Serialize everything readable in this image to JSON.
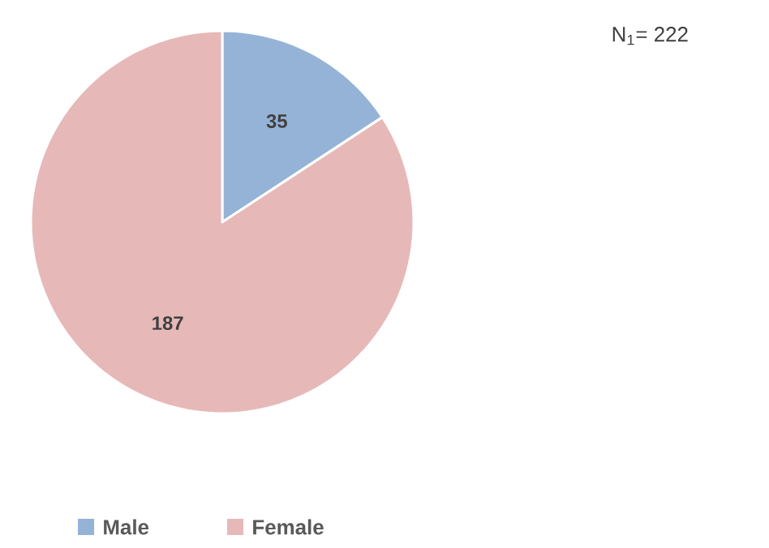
{
  "chart_data": {
    "type": "pie",
    "title": "N$_{1}$= 222",
    "categories": [
      "Male",
      "Female"
    ],
    "values": [
      35,
      187
    ],
    "colors": [
      "#95b3d7",
      "#e6b9b8"
    ],
    "data_labels": true,
    "legend": "bottom"
  }
}
